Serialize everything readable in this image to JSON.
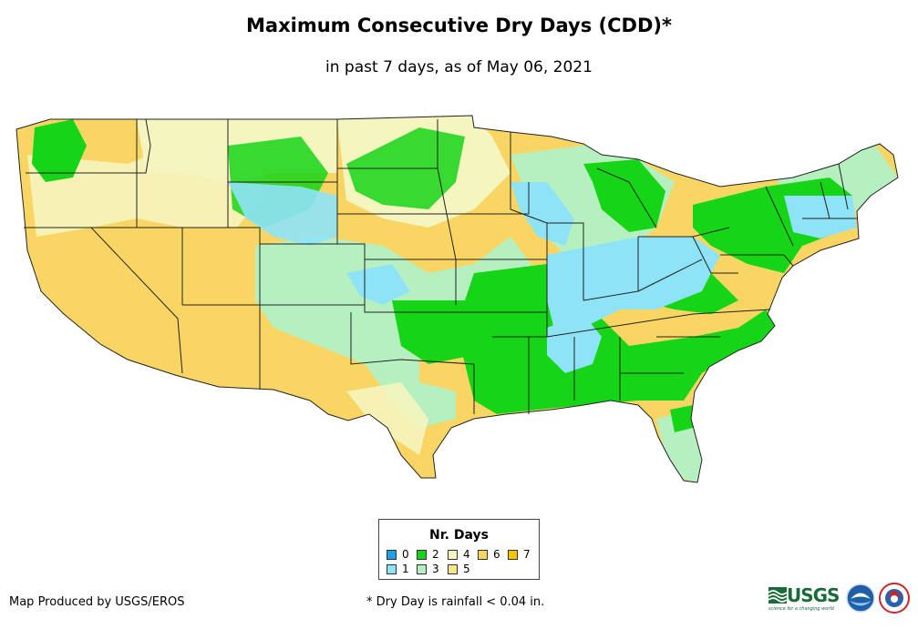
{
  "title": "Maximum Consecutive Dry Days (CDD)*",
  "subtitle": "in past 7 days, as of May 06, 2021",
  "legend": {
    "title": "Nr. Days",
    "items": [
      {
        "label": "0",
        "color": "#1e9fe8"
      },
      {
        "label": "1",
        "color": "#8fe3f7"
      },
      {
        "label": "2",
        "color": "#16d416"
      },
      {
        "label": "3",
        "color": "#b6f0c0"
      },
      {
        "label": "4",
        "color": "#f5f5bf"
      },
      {
        "label": "5",
        "color": "#fbe48e"
      },
      {
        "label": "6",
        "color": "#f9d663"
      },
      {
        "label": "7",
        "color": "#f6c400"
      }
    ]
  },
  "credit": "Map Produced by USGS/EROS",
  "footnote": "* Dry Day is rainfall < 0.04 in.",
  "logos": {
    "usgs": "USGS",
    "usgs_tagline": "science for a changing world",
    "noaa": "NOAA",
    "nws": "National Weather Service"
  },
  "map": {
    "region": "Contiguous United States",
    "colors": {
      "state_border": "#222222",
      "dry_west": "#f9d663",
      "light_tan": "#f5f5bf",
      "mint": "#b6f0c0",
      "green": "#16d416",
      "light_blue": "#8fe3f7"
    }
  }
}
